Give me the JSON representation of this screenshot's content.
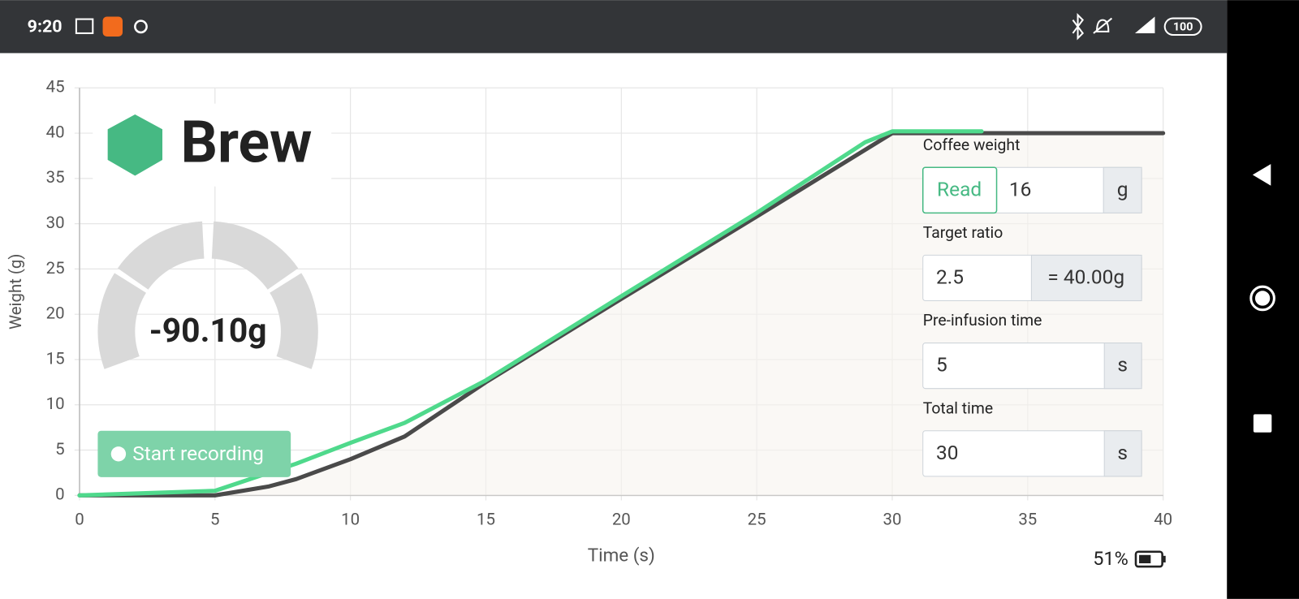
{
  "status_bar": {
    "time": "9:20",
    "battery": "100"
  },
  "header": {
    "title": "Brew"
  },
  "gauge": {
    "label": "-90.10g"
  },
  "record_button": {
    "label": "Start recording"
  },
  "form": {
    "coffee_weight": {
      "label": "Coffee weight",
      "button": "Read",
      "value": "16",
      "unit": "g"
    },
    "target_ratio": {
      "label": "Target ratio",
      "value": "2.5",
      "result": "= 40.00g"
    },
    "preinfusion_time": {
      "label": "Pre-infusion time",
      "value": "5",
      "unit": "s"
    },
    "total_time": {
      "label": "Total time",
      "value": "30",
      "unit": "s"
    }
  },
  "scale_battery": "51%",
  "chart_data": {
    "type": "line",
    "x_label": "Time (s)",
    "y_label": "Weight (g)",
    "xlim": [
      0,
      40
    ],
    "ylim": [
      0,
      45
    ],
    "xticks": [
      0,
      5,
      10,
      15,
      20,
      25,
      30,
      35,
      40
    ],
    "yticks": [
      0,
      5,
      10,
      15,
      20,
      25,
      30,
      35,
      40,
      45
    ],
    "grid": true,
    "series": [
      {
        "color": "#4a4a4a",
        "x": [
          0,
          5,
          7,
          8,
          10,
          12,
          15,
          20,
          25,
          30,
          40
        ],
        "values": [
          0,
          0,
          1,
          1.8,
          4,
          6.5,
          12.5,
          21.7,
          30.8,
          40,
          40
        ]
      },
      {
        "color": "#4fd98c",
        "x": [
          0,
          5,
          6,
          8,
          10,
          12,
          15,
          20,
          25,
          29,
          30,
          33.3
        ],
        "values": [
          0,
          0.5,
          1.5,
          3.5,
          5.8,
          8,
          12.7,
          22,
          31.2,
          39,
          40.2,
          40.2
        ]
      }
    ]
  }
}
